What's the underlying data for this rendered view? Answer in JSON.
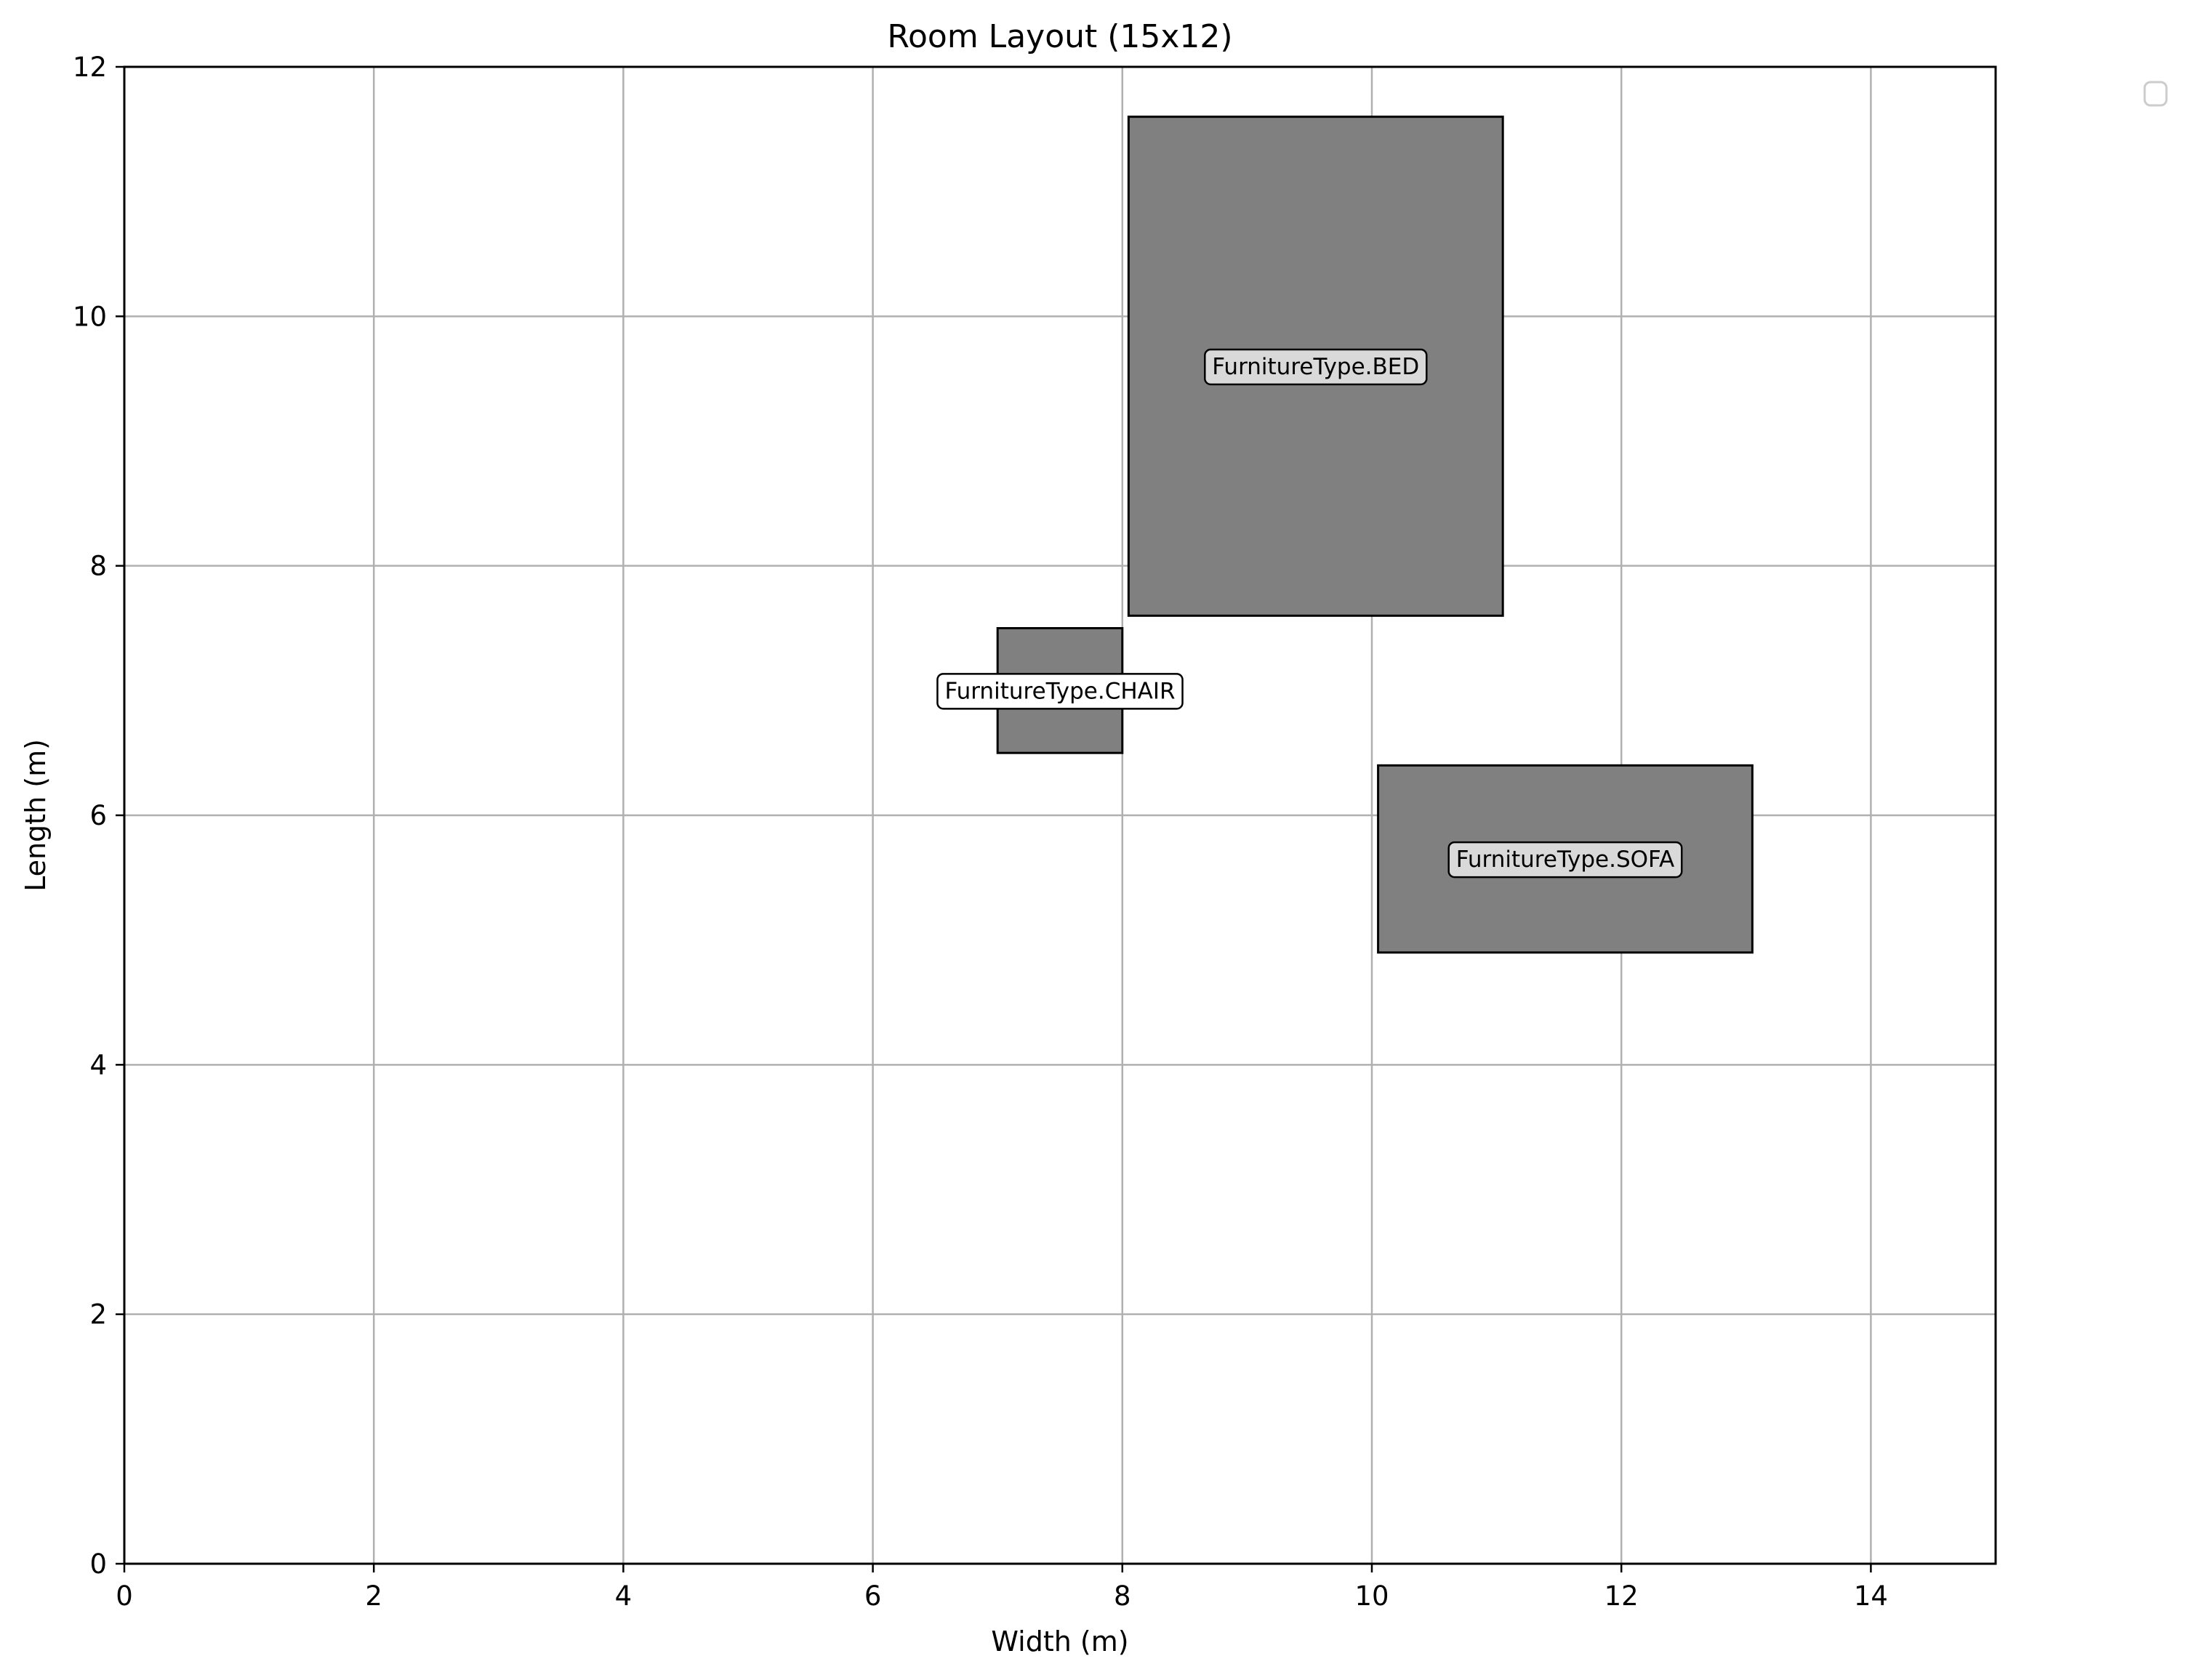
{
  "chart_data": {
    "type": "rectangles",
    "title": "Room Layout (15x12)",
    "xlabel": "Width (m)",
    "ylabel": "Length (m)",
    "xlim": [
      0,
      15
    ],
    "ylim": [
      0,
      12
    ],
    "xticks": [
      0,
      2,
      4,
      6,
      8,
      10,
      12,
      14
    ],
    "yticks": [
      0,
      2,
      4,
      6,
      8,
      10,
      12
    ],
    "grid": true,
    "legend": "upper-right-outside-empty",
    "items": [
      {
        "label": "FurnitureType.BED",
        "x": 8.05,
        "y": 7.6,
        "width": 3.0,
        "height": 4.0,
        "label_bg": "#d9d9d9"
      },
      {
        "label": "FurnitureType.CHAIR",
        "x": 7.0,
        "y": 6.5,
        "width": 1.0,
        "height": 1.0,
        "label_bg": "#ffffff"
      },
      {
        "label": "FurnitureType.SOFA",
        "x": 10.05,
        "y": 4.9,
        "width": 3.0,
        "height": 1.5,
        "label_bg": "#d9d9d9"
      }
    ],
    "fill_color": "#808080",
    "edge_color": "#000000",
    "grid_color": "#b0b0b0"
  }
}
